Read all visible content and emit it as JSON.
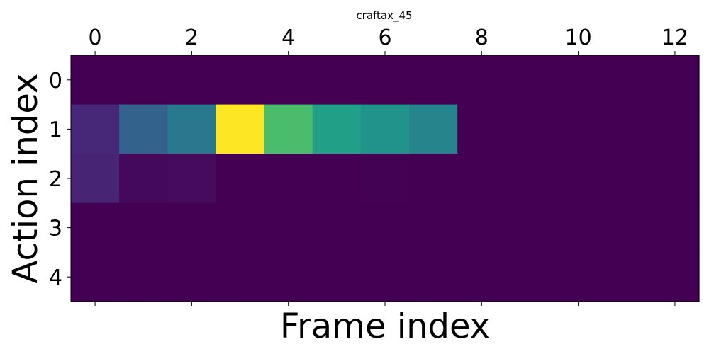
{
  "chart_data": {
    "type": "heatmap",
    "title": "craftax_45",
    "xlabel": "Frame index",
    "ylabel": "Action index",
    "x_ticks": [
      0,
      2,
      4,
      6,
      8,
      10,
      12
    ],
    "y_ticks": [
      0,
      1,
      2,
      3,
      4
    ],
    "x_axis_position": "top",
    "rows": 5,
    "cols": 13,
    "grid": false,
    "colormap": "viridis",
    "vmin": 0,
    "vmax": 1,
    "values": [
      [
        0,
        0,
        0,
        0,
        0,
        0,
        0,
        0,
        0,
        0,
        0,
        0,
        0
      ],
      [
        0.14,
        0.4,
        0.5,
        1.0,
        0.81,
        0.71,
        0.64,
        0.56,
        0,
        0,
        0,
        0,
        0
      ],
      [
        0.13,
        0.03,
        0.04,
        0,
        0,
        0,
        0.005,
        0,
        0,
        0,
        0,
        0,
        0
      ],
      [
        0,
        0,
        0,
        0,
        0,
        0,
        0,
        0,
        0,
        0,
        0,
        0,
        0
      ],
      [
        0,
        0,
        0,
        0,
        0,
        0,
        0,
        0,
        0,
        0,
        0,
        0,
        0
      ]
    ]
  }
}
